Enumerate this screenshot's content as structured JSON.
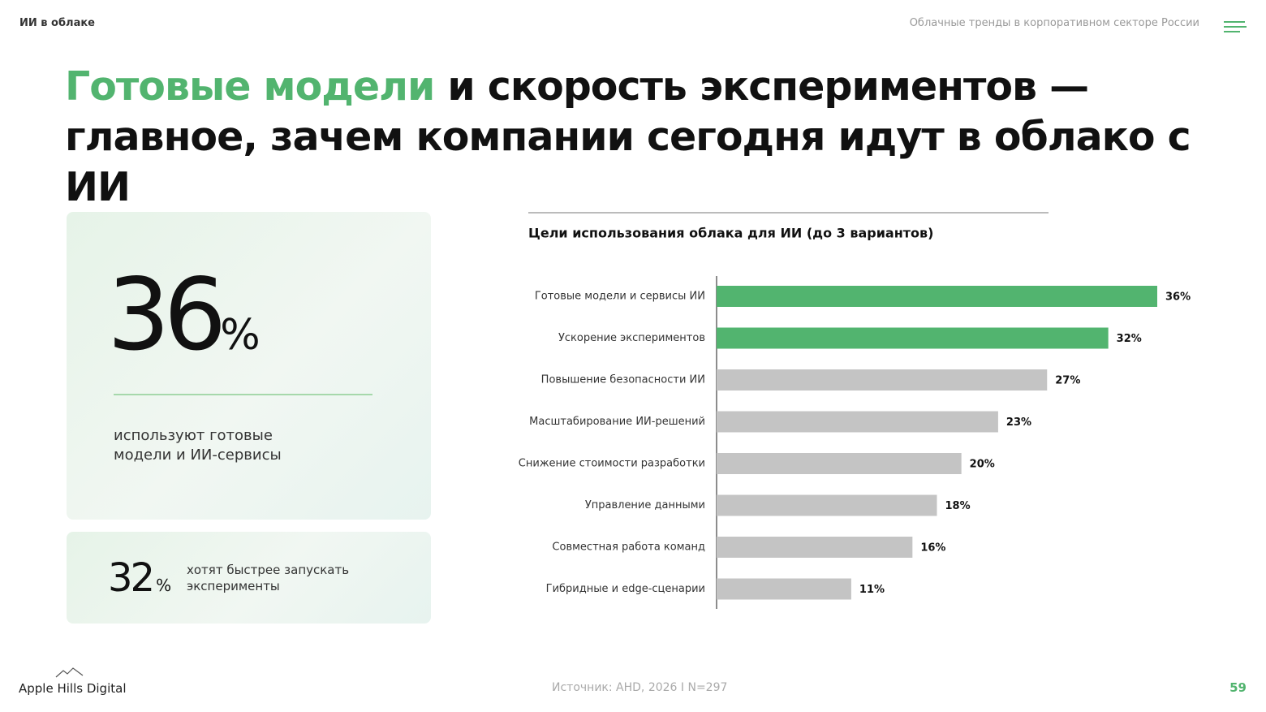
{
  "header": {
    "section": "ИИ в облаке",
    "report": "Облачные тренды в корпоративном секторе России"
  },
  "title": {
    "highlight": "Готовые модели",
    "line1": "и скорость экспериментов —",
    "line2": "главное, зачем компании сегодня идут в облако с ИИ"
  },
  "stats": [
    {
      "value": 36,
      "unit": "%",
      "text": "используют готовые модели и ИИ-сервисы"
    },
    {
      "value": 32,
      "unit": "%",
      "text": "хотят быстрее запускать эксперименты"
    }
  ],
  "chart_data": {
    "type": "hbar",
    "title": "Цели использования облака для ИИ (до 3 вариантов)",
    "categories": [
      "Готовые модели и сервисы ИИ",
      "Ускорение экспериментов",
      "Повышение безопасности ИИ",
      "Масштабирование ИИ-решений",
      "Снижение стоимости разработки",
      "Управление данными",
      "Совместная работа команд",
      "Гибридные и edge-сценарии"
    ],
    "values": [
      36,
      32,
      27,
      23,
      20,
      18,
      16,
      11
    ],
    "value_labels": [
      "36%",
      "32%",
      "27%",
      "23%",
      "20%",
      "18%",
      "16%",
      "11%"
    ],
    "colors": [
      "#52b46f",
      "#52b46f",
      "#c4c4c4",
      "#c4c4c4",
      "#c4c4c4",
      "#c4c4c4",
      "#c4c4c4",
      "#c4c4c4"
    ],
    "xlim": [
      0,
      36
    ]
  },
  "footer": {
    "brand": "Apple Hills Digital",
    "source": "Источник: AHD, 2026 I N=297",
    "page": 59
  }
}
